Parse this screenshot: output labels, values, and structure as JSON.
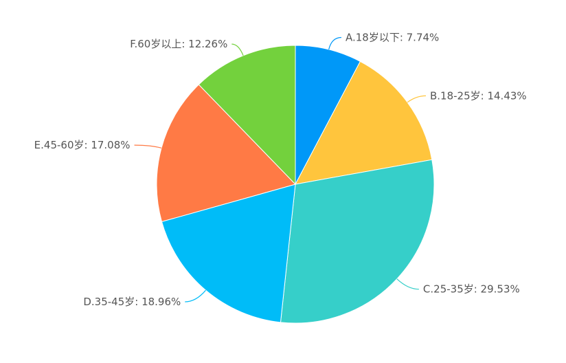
{
  "chart_data": {
    "type": "pie",
    "title": "",
    "series": [
      {
        "categories": [
          "A.18岁以下",
          "B.18-25岁",
          "C.25-35岁",
          "D.35-45岁",
          "E.45-60岁",
          "F.60岁以上"
        ],
        "values": [
          7.74,
          14.43,
          29.53,
          18.96,
          17.08,
          12.26
        ],
        "labels": [
          "A.18岁以下: 7.74%",
          "B.18-25岁: 14.43%",
          "C.25-35岁: 29.53%",
          "D.35-45岁: 18.96%",
          "E.45-60岁: 17.08%",
          "F.60岁以上: 12.26%"
        ],
        "colors": [
          "#0098f8",
          "#ffc53d",
          "#36cfc9",
          "#00bcf8",
          "#ff7a45",
          "#73d13d"
        ]
      }
    ],
    "start_angle": "top",
    "direction": "clockwise",
    "legend": "none"
  }
}
